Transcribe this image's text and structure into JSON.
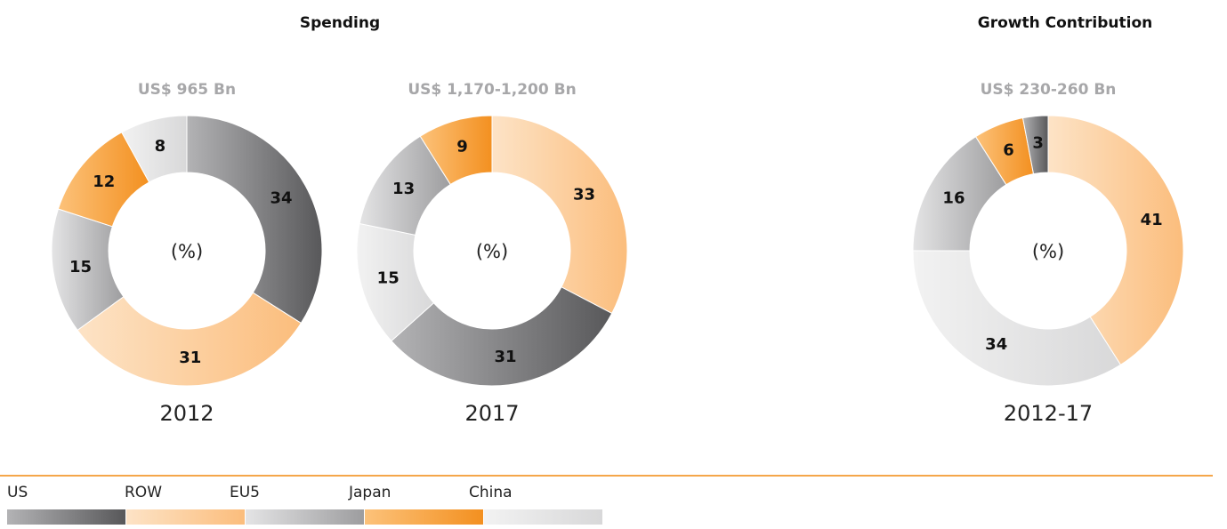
{
  "headings": [
    "Spending",
    "Growth Contribution"
  ],
  "legend": {
    "categories": [
      "US",
      "ROW",
      "EU5",
      "Japan",
      "China"
    ],
    "colors": [
      [
        "#b3b3b5",
        "#58585a"
      ],
      [
        "#fde3c6",
        "#fbbd7c"
      ],
      [
        "#e4e4e5",
        "#9d9d9f"
      ],
      [
        "#fcc27a",
        "#f39020"
      ],
      [
        "#f2f2f2",
        "#d8d8d9"
      ]
    ]
  },
  "chart_data": [
    {
      "type": "pie",
      "title": "US$ 965 Bn",
      "center_label": "(%)",
      "label": "2012",
      "categories": [
        "US",
        "ROW",
        "EU5",
        "Japan",
        "China"
      ],
      "values": [
        34,
        31,
        15,
        12,
        8
      ]
    },
    {
      "type": "pie",
      "title": "US$ 1,170-1,200 Bn",
      "center_label": "(%)",
      "label": "2017",
      "categories": [
        "ROW",
        "US",
        "China",
        "EU5",
        "Japan"
      ],
      "values": [
        33,
        31,
        15,
        13,
        9
      ]
    },
    {
      "type": "pie",
      "title": "US$ 230-260 Bn",
      "center_label": "(%)",
      "label": "2012-17",
      "categories": [
        "ROW",
        "China",
        "EU5",
        "Japan",
        "US"
      ],
      "values": [
        41,
        34,
        16,
        6,
        3
      ]
    }
  ]
}
